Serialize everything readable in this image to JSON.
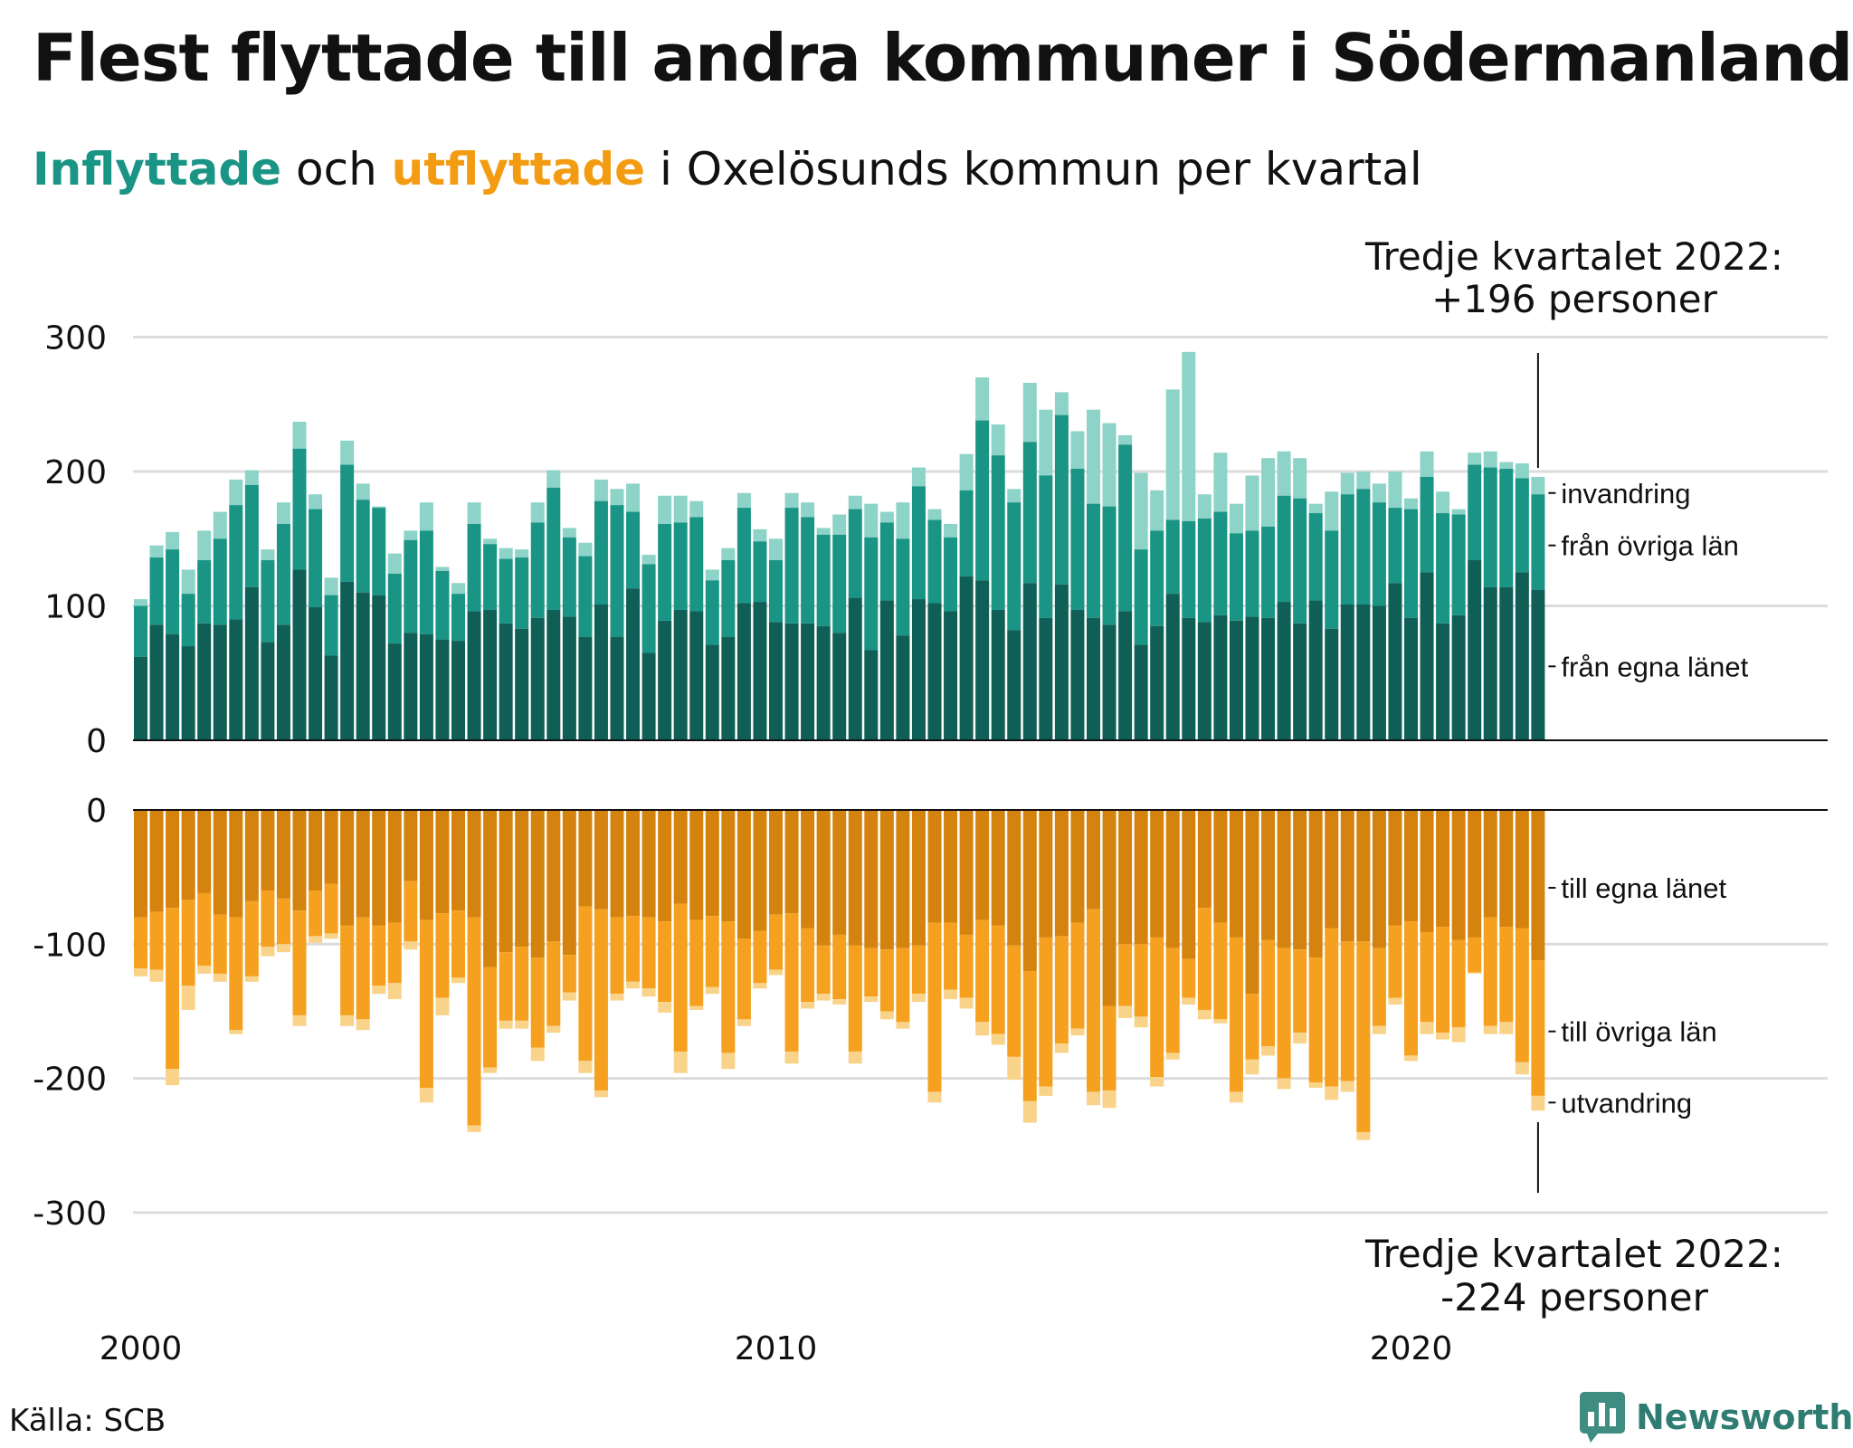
{
  "header": {
    "title": "Flest flyttade till andra kommuner i Södermanland",
    "subtitle_in": "Inflyttade",
    "subtitle_mid": " och ",
    "subtitle_out": "utflyttade",
    "subtitle_rest": " i Oxelösunds kommun per kvartal"
  },
  "footer": {
    "source": "Källa: SCB",
    "brand": "Newsworthy"
  },
  "chart_data": {
    "type": "bar",
    "stacked": true,
    "x_start": "2000-Q1",
    "x_end": "2022-Q3",
    "x_ticks": [
      "2000",
      "2010",
      "2020"
    ],
    "y_ticks_in": [
      "300",
      "200",
      "100",
      "0"
    ],
    "y_ticks_out": [
      "0",
      "-100",
      "-200",
      "-300"
    ],
    "ylim_in": [
      0,
      300
    ],
    "ylim_out": [
      -300,
      0
    ],
    "grid": true,
    "colors": {
      "in_own": "#0f5f56",
      "in_other": "#1a9485",
      "in_immig": "#8dd3c7",
      "out_own": "#d4830e",
      "out_other": "#f5a11f",
      "out_emig": "#fad38a"
    },
    "series_labels_in": [
      "invandring",
      "från övriga län",
      "från egna länet"
    ],
    "series_labels_out": [
      "till egna länet",
      "till övriga län",
      "utvandring"
    ],
    "annotation_top": [
      "Tredje kvartalet 2022:",
      "+196 personer"
    ],
    "annotation_bottom": [
      "Tredje kvartalet 2022:",
      "-224 personer"
    ],
    "in_total": [
      105,
      145,
      155,
      127,
      156,
      170,
      194,
      201,
      142,
      177,
      237,
      183,
      121,
      223,
      191,
      174,
      139,
      156,
      177,
      129,
      117,
      177,
      150,
      143,
      142,
      177,
      201,
      158,
      147,
      194,
      187,
      191,
      138,
      182,
      182,
      178,
      127,
      143,
      184,
      157,
      150,
      184,
      177,
      158,
      168,
      182,
      176,
      170,
      177,
      203,
      172,
      161,
      213,
      270,
      235,
      187,
      266,
      246,
      259,
      230,
      246,
      236,
      227,
      199,
      186,
      261,
      289,
      183,
      214,
      176,
      197,
      210,
      215,
      210,
      176,
      185,
      199,
      200,
      191,
      200,
      180,
      215,
      185,
      172,
      214,
      215,
      207,
      206,
      196
    ],
    "in_own": [
      62,
      86,
      79,
      70,
      87,
      86,
      90,
      114,
      73,
      86,
      127,
      99,
      63,
      118,
      110,
      108,
      72,
      80,
      79,
      75,
      74,
      96,
      97,
      87,
      83,
      91,
      97,
      92,
      77,
      101,
      77,
      113,
      65,
      89,
      97,
      96,
      71,
      77,
      102,
      103,
      88,
      87,
      87,
      85,
      80,
      106,
      67,
      104,
      78,
      105,
      102,
      96,
      122,
      119,
      97,
      82,
      117,
      91,
      116,
      97,
      91,
      86,
      96,
      71,
      85,
      109,
      91,
      88,
      93,
      89,
      92,
      91,
      103,
      87,
      104,
      83,
      101,
      101,
      100,
      117,
      91,
      125,
      87,
      93,
      134,
      114,
      114,
      125,
      112
    ],
    "in_other": [
      100,
      136,
      142,
      109,
      134,
      150,
      175,
      190,
      134,
      161,
      217,
      172,
      108,
      205,
      179,
      173,
      124,
      149,
      156,
      126,
      109,
      161,
      146,
      135,
      136,
      162,
      188,
      151,
      137,
      178,
      175,
      170,
      131,
      161,
      162,
      166,
      119,
      134,
      173,
      148,
      134,
      173,
      166,
      153,
      153,
      172,
      151,
      162,
      150,
      189,
      164,
      151,
      186,
      238,
      212,
      177,
      222,
      197,
      242,
      202,
      176,
      174,
      220,
      142,
      156,
      164,
      163,
      165,
      170,
      154,
      156,
      159,
      182,
      180,
      169,
      156,
      183,
      187,
      177,
      173,
      172,
      196,
      169,
      168,
      205,
      203,
      202,
      195,
      183
    ],
    "out_total": [
      -124,
      -128,
      -205,
      -149,
      -122,
      -128,
      -167,
      -128,
      -109,
      -106,
      -161,
      -99,
      -96,
      -161,
      -164,
      -137,
      -141,
      -104,
      -218,
      -153,
      -129,
      -240,
      -196,
      -163,
      -163,
      -187,
      -166,
      -142,
      -196,
      -214,
      -142,
      -133,
      -139,
      -151,
      -196,
      -149,
      -137,
      -193,
      -161,
      -133,
      -123,
      -189,
      -148,
      -142,
      -145,
      -189,
      -143,
      -156,
      -163,
      -143,
      -218,
      -141,
      -148,
      -168,
      -175,
      -201,
      -233,
      -213,
      -181,
      -168,
      -220,
      -222,
      -155,
      -162,
      -206,
      -186,
      -145,
      -156,
      -159,
      -218,
      -197,
      -183,
      -208,
      -174,
      -207,
      -216,
      -210,
      -246,
      -167,
      -145,
      -187,
      -167,
      -171,
      -173,
      -122,
      -167,
      -167,
      -197,
      -224
    ],
    "out_own": [
      -80,
      -76,
      -73,
      -67,
      -62,
      -78,
      -80,
      -68,
      -60,
      -66,
      -75,
      -60,
      -55,
      -86,
      -80,
      -86,
      -84,
      -53,
      -82,
      -77,
      -75,
      -80,
      -117,
      -106,
      -102,
      -110,
      -98,
      -108,
      -72,
      -74,
      -80,
      -79,
      -80,
      -83,
      -70,
      -82,
      -79,
      -83,
      -96,
      -90,
      -78,
      -77,
      -88,
      -101,
      -93,
      -101,
      -103,
      -104,
      -103,
      -101,
      -84,
      -84,
      -93,
      -82,
      -86,
      -101,
      -120,
      -95,
      -94,
      -84,
      -74,
      -146,
      -100,
      -100,
      -95,
      -103,
      -111,
      -73,
      -84,
      -95,
      -137,
      -97,
      -103,
      -104,
      -110,
      -88,
      -98,
      -98,
      -103,
      -86,
      -83,
      -91,
      -87,
      -97,
      -95,
      -80,
      -87,
      -88,
      -112
    ],
    "out_other": [
      -118,
      -119,
      -193,
      -131,
      -116,
      -122,
      -164,
      -124,
      -102,
      -100,
      -153,
      -94,
      -92,
      -153,
      -156,
      -131,
      -129,
      -98,
      -207,
      -140,
      -125,
      -235,
      -192,
      -157,
      -157,
      -177,
      -161,
      -136,
      -187,
      -209,
      -137,
      -128,
      -133,
      -143,
      -180,
      -146,
      -132,
      -181,
      -156,
      -129,
      -119,
      -180,
      -143,
      -137,
      -141,
      -180,
      -139,
      -150,
      -158,
      -137,
      -210,
      -134,
      -140,
      -158,
      -167,
      -184,
      -217,
      -206,
      -174,
      -163,
      -210,
      -209,
      -146,
      -154,
      -199,
      -181,
      -140,
      -149,
      -156,
      -210,
      -186,
      -176,
      -200,
      -166,
      -203,
      -206,
      -202,
      -240,
      -161,
      -140,
      -183,
      -158,
      -166,
      -162,
      -121,
      -161,
      -158,
      -188,
      -213
    ]
  }
}
